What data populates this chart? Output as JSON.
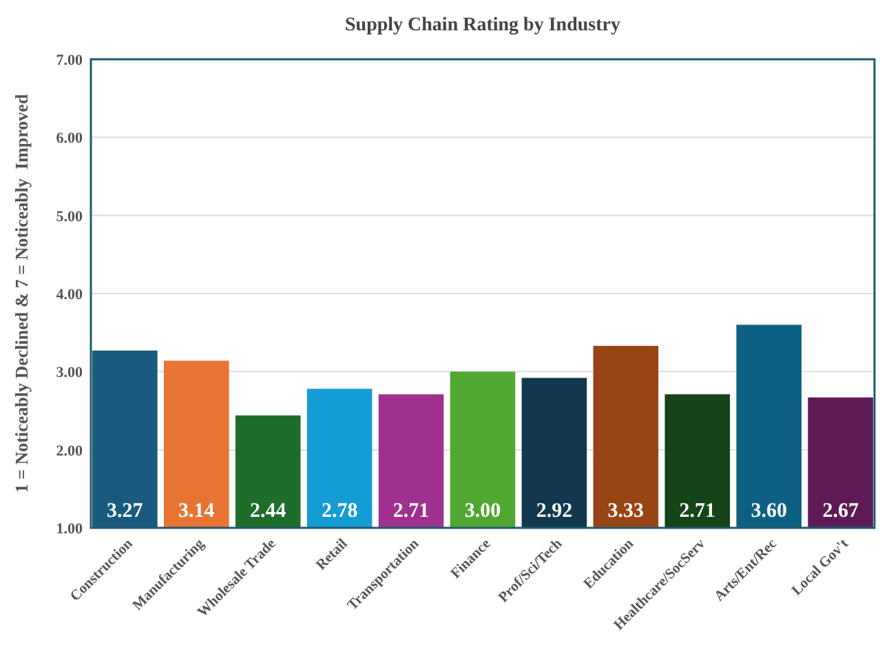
{
  "chart_data": {
    "type": "bar",
    "title": "Supply Chain Rating by Industry",
    "ylabel": "1 = Noticeably Declined & 7 = Noticeably  Improved",
    "categories": [
      "Construction",
      "Manufacturing",
      "Wholesale Trade",
      "Retail",
      "Transportation",
      "Finance",
      "Prof/Sci/Tech",
      "Education",
      "Healthcare/SocServ",
      "Arts/Ent/Rec",
      "Local Gov't"
    ],
    "values": [
      3.27,
      3.14,
      2.44,
      2.78,
      2.71,
      3.0,
      2.92,
      3.33,
      2.71,
      3.6,
      2.67
    ],
    "colors": [
      "#1a5a7e",
      "#e87434",
      "#1e6e2a",
      "#149cd4",
      "#a0308e",
      "#50a832",
      "#11384e",
      "#984414",
      "#144418",
      "#0e6082",
      "#5e1a56"
    ],
    "ylim": [
      1,
      7
    ],
    "yticks": [
      {
        "value": 1,
        "label": "1.00"
      },
      {
        "value": 2,
        "label": "2.00"
      },
      {
        "value": 3,
        "label": "3.00"
      },
      {
        "value": 4,
        "label": "4.00"
      },
      {
        "value": 5,
        "label": "5.00"
      },
      {
        "value": 6,
        "label": "6.00"
      },
      {
        "value": 7,
        "label": "7.00"
      }
    ],
    "value_labels": [
      "3.27",
      "3.14",
      "2.44",
      "2.78",
      "2.71",
      "3.00",
      "2.92",
      "3.33",
      "2.71",
      "3.60",
      "2.67"
    ],
    "grid": "y"
  }
}
